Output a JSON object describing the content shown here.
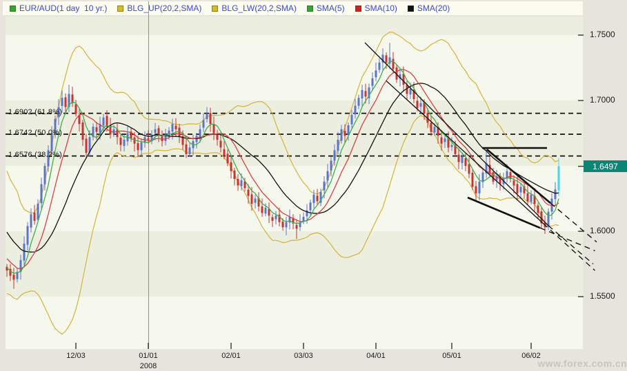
{
  "watermark": "www.forex.com.cn",
  "legend": {
    "items": [
      {
        "label": "EUR/AUD(1 day  10 yr.)",
        "color": "#2fa832"
      },
      {
        "label": "BLG_UP(20,2,SMA)",
        "color": "#d4b928"
      },
      {
        "label": "BLG_LW(20,2,SMA)",
        "color": "#d4b928"
      },
      {
        "label": "SMA(5)",
        "color": "#2fa832"
      },
      {
        "label": "SMA(10)",
        "color": "#cc2222"
      },
      {
        "label": "SMA(20)",
        "color": "#111111"
      }
    ]
  },
  "colors": {
    "candle_up": "#5a74cc",
    "candle_down": "#c83232",
    "candle_last": "#3fd8e8",
    "sma5": "#3fae4a",
    "sma10": "#d94040",
    "sma20": "#111111",
    "bollinger": "#d4b23c",
    "stripe_light": "#f6f8ed",
    "stripe_dark": "#ecefdf",
    "legend_text": "#3949cf",
    "year_line": "#8f8f8f",
    "fib_line": "#111111",
    "tag_bg": "#0c8577",
    "tag_text": "#ffffff",
    "axis_text": "#1a1a1a",
    "tick": "#333333"
  },
  "chart_data": {
    "type": "candlestick",
    "symbol": "EUR/AUD",
    "period": "1 day",
    "range": "10 yr.",
    "grid": "alternating horizontal price bands every 0.05",
    "y_axis_labels": [
      {
        "price": 1.75,
        "label": "1.7500"
      },
      {
        "price": 1.7,
        "label": "1.7000"
      },
      {
        "price": 1.6,
        "label": "1.6000"
      },
      {
        "price": 1.55,
        "label": "1.5500"
      }
    ],
    "current_price": {
      "value": 1.6497,
      "label": "1.6497"
    },
    "x_ticks": [
      {
        "label": "12/03",
        "index": 20
      },
      {
        "label": "01/01",
        "index": 41,
        "year": "2008"
      },
      {
        "label": "02/01",
        "index": 65
      },
      {
        "label": "03/03",
        "index": 86
      },
      {
        "label": "04/01",
        "index": 107
      },
      {
        "label": "05/01",
        "index": 129
      },
      {
        "label": "06/02",
        "index": 152
      }
    ],
    "fib_levels": [
      {
        "price": 1.6902,
        "label": "1.6902 (61.8%)"
      },
      {
        "price": 1.6742,
        "label": "1.6742 (50.0%)"
      },
      {
        "price": 1.6576,
        "label": "1.6576 (38.2%)"
      }
    ],
    "indicators": [
      {
        "name": "BLG_UP",
        "params": "20,2,SMA"
      },
      {
        "name": "BLG_LW",
        "params": "20,2,SMA"
      },
      {
        "name": "SMA",
        "params": "5"
      },
      {
        "name": "SMA",
        "params": "10"
      },
      {
        "name": "SMA",
        "params": "20"
      }
    ],
    "candles": {
      "first_open": 1.574,
      "warmup": [
        1.638,
        1.644,
        1.632,
        1.625,
        1.636,
        1.62,
        1.612,
        1.618,
        1.606,
        1.598,
        1.604,
        1.594,
        1.586,
        1.592,
        1.582,
        1.575,
        1.58,
        1.572,
        1.566,
        1.574
      ],
      "closes": [
        1.57,
        1.566,
        1.563,
        1.569,
        1.578,
        1.5905,
        1.604,
        1.613,
        1.608,
        1.621,
        1.636,
        1.65,
        1.662,
        1.675,
        1.686,
        1.695,
        1.702,
        1.695,
        1.705,
        1.698,
        1.69,
        1.682,
        1.67,
        1.66,
        1.672,
        1.68,
        1.676,
        1.682,
        1.687,
        1.68,
        1.674,
        1.678,
        1.672,
        1.666,
        1.67,
        1.675,
        1.671,
        1.667,
        1.662,
        1.668,
        1.672,
        1.67,
        1.674,
        1.678,
        1.673,
        1.669,
        1.673,
        1.677,
        1.682,
        1.678,
        1.672,
        1.666,
        1.659,
        1.664,
        1.669,
        1.673,
        1.678,
        1.685,
        1.69,
        1.682,
        1.675,
        1.67,
        1.664,
        1.658,
        1.652,
        1.646,
        1.64,
        1.635,
        1.639,
        1.633,
        1.627,
        1.621,
        1.625,
        1.619,
        1.614,
        1.618,
        1.612,
        1.608,
        1.612,
        1.607,
        1.603,
        1.607,
        1.611,
        1.606,
        1.602,
        1.607,
        1.611,
        1.616,
        1.622,
        1.628,
        1.623,
        1.63,
        1.638,
        1.646,
        1.654,
        1.662,
        1.67,
        1.678,
        1.673,
        1.681,
        1.689,
        1.696,
        1.702,
        1.708,
        1.703,
        1.71,
        1.717,
        1.723,
        1.729,
        1.735,
        1.729,
        1.733,
        1.724,
        1.716,
        1.72,
        1.712,
        1.705,
        1.709,
        1.701,
        1.694,
        1.698,
        1.69,
        1.683,
        1.676,
        1.68,
        1.673,
        1.667,
        1.671,
        1.664,
        1.666,
        1.659,
        1.653,
        1.657,
        1.65,
        1.644,
        1.634,
        1.629,
        1.638,
        1.645,
        1.652,
        1.644,
        1.638,
        1.642,
        1.636,
        1.641,
        1.646,
        1.64,
        1.635,
        1.629,
        1.634,
        1.629,
        1.623,
        1.628,
        1.621,
        1.614,
        1.606,
        1.603,
        1.615,
        1.625,
        1.632,
        1.6497
      ],
      "wick_overrides": {
        "2": {
          "l": 1.556
        },
        "15": {
          "h": 1.701
        },
        "18": {
          "h": 1.712
        },
        "58": {
          "h": 1.695
        },
        "84": {
          "l": 1.594
        },
        "111": {
          "h": 1.744
        },
        "139": {
          "h": 1.664
        },
        "156": {
          "l": 1.598
        },
        "160": {
          "h": 1.656
        }
      }
    },
    "annotations": [
      {
        "name": "resistance-line",
        "style": "solid",
        "width": 2.6,
        "i1": 137.8,
        "p1": 1.6637,
        "i2": 156.6,
        "p2": 1.6637
      },
      {
        "name": "wedge-upper",
        "style": "solid",
        "width": 2.6,
        "i1": 139.2,
        "p1": 1.6626,
        "i2": 157.6,
        "p2": 1.6216
      },
      {
        "name": "wedge-upper-ext",
        "style": "dashed",
        "width": 1.4,
        "i1": 157.6,
        "p1": 1.6216,
        "i2": 171.0,
        "p2": 1.5918
      },
      {
        "name": "wedge-lower",
        "style": "solid",
        "width": 2.6,
        "i1": 133.6,
        "p1": 1.6258,
        "i2": 154.6,
        "p2": 1.6026
      },
      {
        "name": "wedge-lower-ext",
        "style": "dashed",
        "width": 1.4,
        "i1": 154.6,
        "p1": 1.6026,
        "i2": 170.5,
        "p2": 1.5851
      },
      {
        "name": "trendline-1",
        "style": "solid",
        "width": 1.3,
        "i1": 103.8,
        "p1": 1.7442,
        "i2": 157.0,
        "p2": 1.6043
      },
      {
        "name": "trendline-1-ext",
        "style": "dashed",
        "width": 1.3,
        "i1": 157.0,
        "p1": 1.6043,
        "i2": 170.0,
        "p2": 1.575
      },
      {
        "name": "trendline-2",
        "style": "solid",
        "width": 1.3,
        "i1": 110.0,
        "p1": 1.715,
        "i2": 155.5,
        "p2": 1.606
      },
      {
        "name": "trendline-2-ext",
        "style": "dashed",
        "width": 1.3,
        "i1": 155.5,
        "p1": 1.606,
        "i2": 170.5,
        "p2": 1.57
      }
    ]
  }
}
